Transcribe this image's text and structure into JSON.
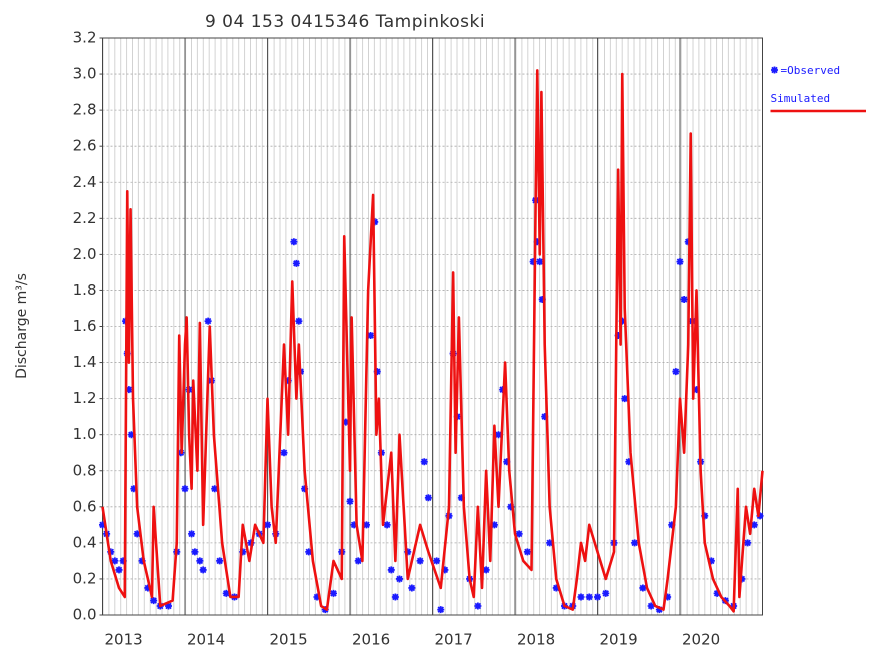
{
  "chart_data": {
    "type": "line",
    "title": "9 04 153 0415346 Tampinkoski",
    "ylabel": "Discharge m³/s",
    "xlim": [
      2013,
      2021
    ],
    "xticks": [
      2013,
      2014,
      2015,
      2016,
      2017,
      2018,
      2019,
      2020
    ],
    "ylim": [
      0,
      3.2
    ],
    "yticks": [
      {
        "value": 0,
        "label": "0.0"
      },
      {
        "value": 0.2,
        "label": "0.2"
      },
      {
        "value": 0.4,
        "label": "0.4"
      },
      {
        "value": 0.6,
        "label": "0.6"
      },
      {
        "value": 0.8,
        "label": "0.8"
      },
      {
        "value": 1,
        "label": "1.0"
      },
      {
        "value": 1.2,
        "label": "1.2"
      },
      {
        "value": 1.4,
        "label": "1.4"
      },
      {
        "value": 1.6,
        "label": "1.6"
      },
      {
        "value": 1.8,
        "label": "1.8"
      },
      {
        "value": 2,
        "label": "2.0"
      },
      {
        "value": 2.2,
        "label": "2.2"
      },
      {
        "value": 2.4,
        "label": "2.4"
      },
      {
        "value": 2.6,
        "label": "2.6"
      },
      {
        "value": 2.8,
        "label": "2.8"
      },
      {
        "value": 3,
        "label": "3.0"
      },
      {
        "value": 3.2,
        "label": "3.2"
      }
    ],
    "grid": true,
    "legend": "right",
    "series": [
      {
        "name": "=Observed",
        "color": "#1a1aff",
        "kind": "scatter",
        "x": [
          2013.0,
          2013.05,
          2013.1,
          2013.15,
          2013.2,
          2013.25,
          2013.28,
          2013.3,
          2013.32,
          2013.35,
          2013.38,
          2013.42,
          2013.48,
          2013.55,
          2013.62,
          2013.7,
          2013.8,
          2013.9,
          2013.95,
          2014.0,
          2014.05,
          2014.08,
          2014.12,
          2014.18,
          2014.22,
          2014.28,
          2014.32,
          2014.36,
          2014.42,
          2014.5,
          2014.6,
          2014.7,
          2014.8,
          2014.9,
          2015.0,
          2015.1,
          2015.2,
          2015.25,
          2015.32,
          2015.35,
          2015.38,
          2015.4,
          2015.45,
          2015.5,
          2015.6,
          2015.7,
          2015.8,
          2015.9,
          2015.95,
          2016.0,
          2016.05,
          2016.1,
          2016.2,
          2016.25,
          2016.3,
          2016.33,
          2016.38,
          2016.45,
          2016.5,
          2016.55,
          2016.6,
          2016.7,
          2016.75,
          2016.85,
          2016.9,
          2016.95,
          2017.05,
          2017.1,
          2017.15,
          2017.2,
          2017.25,
          2017.3,
          2017.35,
          2017.45,
          2017.55,
          2017.65,
          2017.75,
          2017.8,
          2017.85,
          2017.9,
          2017.95,
          2018.05,
          2018.15,
          2018.22,
          2018.25,
          2018.27,
          2018.3,
          2018.33,
          2018.36,
          2018.42,
          2018.5,
          2018.6,
          2018.7,
          2018.8,
          2018.9,
          2019.0,
          2019.1,
          2019.2,
          2019.25,
          2019.3,
          2019.33,
          2019.38,
          2019.45,
          2019.55,
          2019.65,
          2019.75,
          2019.85,
          2019.9,
          2019.95,
          2020.0,
          2020.05,
          2020.1,
          2020.15,
          2020.2,
          2020.25,
          2020.3,
          2020.38,
          2020.45,
          2020.55,
          2020.65,
          2020.75,
          2020.82,
          2020.9,
          2020.97
        ],
        "values": [
          0.5,
          0.45,
          0.35,
          0.3,
          0.25,
          0.3,
          1.63,
          1.45,
          1.25,
          1.0,
          0.7,
          0.45,
          0.3,
          0.15,
          0.08,
          0.05,
          0.05,
          0.35,
          0.9,
          0.7,
          1.25,
          0.45,
          0.35,
          0.3,
          0.25,
          1.63,
          1.3,
          0.7,
          0.3,
          0.12,
          0.1,
          0.35,
          0.4,
          0.45,
          0.5,
          0.45,
          0.9,
          1.3,
          2.07,
          1.95,
          1.63,
          1.35,
          0.7,
          0.35,
          0.1,
          0.03,
          0.12,
          0.35,
          1.07,
          0.63,
          0.5,
          0.3,
          0.5,
          1.55,
          2.18,
          1.35,
          0.9,
          0.5,
          0.25,
          0.1,
          0.2,
          0.35,
          0.15,
          0.3,
          0.85,
          0.65,
          0.3,
          0.03,
          0.25,
          0.55,
          1.45,
          1.1,
          0.65,
          0.2,
          0.05,
          0.25,
          0.5,
          1.0,
          1.25,
          0.85,
          0.6,
          0.45,
          0.35,
          1.96,
          2.3,
          2.07,
          1.96,
          1.75,
          1.1,
          0.4,
          0.15,
          0.05,
          0.05,
          0.1,
          0.1,
          0.1,
          0.12,
          0.4,
          1.55,
          1.63,
          1.2,
          0.85,
          0.4,
          0.15,
          0.05,
          0.03,
          0.1,
          0.5,
          1.35,
          1.96,
          1.75,
          2.07,
          1.63,
          1.25,
          0.85,
          0.55,
          0.3,
          0.12,
          0.08,
          0.05,
          0.2,
          0.4,
          0.5,
          0.55
        ]
      },
      {
        "name": "Simulated",
        "color": "#ee1111",
        "kind": "line",
        "x": [
          2013.0,
          2013.1,
          2013.2,
          2013.27,
          2013.3,
          2013.32,
          2013.34,
          2013.37,
          2013.42,
          2013.5,
          2013.6,
          2013.62,
          2013.7,
          2013.85,
          2013.9,
          2013.93,
          2013.96,
          2014.0,
          2014.02,
          2014.05,
          2014.08,
          2014.1,
          2014.15,
          2014.18,
          2014.22,
          2014.3,
          2014.35,
          2014.45,
          2014.55,
          2014.65,
          2014.7,
          2014.78,
          2014.85,
          2014.95,
          2015.0,
          2015.05,
          2015.1,
          2015.2,
          2015.25,
          2015.3,
          2015.35,
          2015.38,
          2015.45,
          2015.55,
          2015.65,
          2015.72,
          2015.8,
          2015.9,
          2015.93,
          2016.0,
          2016.02,
          2016.08,
          2016.15,
          2016.22,
          2016.28,
          2016.32,
          2016.35,
          2016.4,
          2016.5,
          2016.55,
          2016.6,
          2016.7,
          2016.85,
          2016.95,
          2017.1,
          2017.2,
          2017.25,
          2017.28,
          2017.32,
          2017.38,
          2017.45,
          2017.5,
          2017.55,
          2017.6,
          2017.65,
          2017.7,
          2017.75,
          2017.8,
          2017.88,
          2017.93,
          2018.0,
          2018.1,
          2018.2,
          2018.25,
          2018.27,
          2018.3,
          2018.32,
          2018.36,
          2018.42,
          2018.5,
          2018.6,
          2018.7,
          2018.75,
          2018.8,
          2018.85,
          2018.9,
          2019.0,
          2019.1,
          2019.2,
          2019.25,
          2019.28,
          2019.3,
          2019.33,
          2019.4,
          2019.5,
          2019.6,
          2019.7,
          2019.8,
          2019.85,
          2019.95,
          2020.0,
          2020.05,
          2020.1,
          2020.13,
          2020.16,
          2020.2,
          2020.25,
          2020.3,
          2020.4,
          2020.5,
          2020.6,
          2020.65,
          2020.7,
          2020.72,
          2020.8,
          2020.85,
          2020.9,
          2020.95,
          2021.0
        ],
        "values": [
          0.6,
          0.3,
          0.15,
          0.1,
          2.35,
          1.4,
          2.25,
          1.2,
          0.6,
          0.3,
          0.1,
          0.6,
          0.05,
          0.08,
          0.4,
          1.55,
          0.9,
          1.5,
          1.65,
          1.0,
          0.7,
          1.3,
          0.8,
          1.62,
          0.5,
          1.6,
          1.0,
          0.4,
          0.1,
          0.1,
          0.5,
          0.3,
          0.5,
          0.4,
          1.2,
          0.6,
          0.4,
          1.5,
          1.0,
          1.85,
          1.2,
          1.5,
          0.8,
          0.3,
          0.05,
          0.03,
          0.3,
          0.2,
          2.1,
          0.8,
          1.65,
          0.5,
          0.3,
          1.8,
          2.33,
          1.0,
          1.2,
          0.5,
          0.9,
          0.3,
          1.0,
          0.2,
          0.5,
          0.35,
          0.15,
          0.6,
          1.9,
          0.9,
          1.65,
          0.6,
          0.2,
          0.1,
          0.6,
          0.15,
          0.8,
          0.3,
          1.05,
          0.6,
          1.4,
          0.8,
          0.45,
          0.3,
          0.25,
          2.3,
          3.02,
          2.0,
          2.9,
          1.5,
          0.6,
          0.2,
          0.05,
          0.03,
          0.2,
          0.4,
          0.3,
          0.5,
          0.35,
          0.2,
          0.35,
          2.47,
          1.5,
          3.0,
          1.7,
          0.9,
          0.4,
          0.15,
          0.05,
          0.03,
          0.2,
          0.6,
          1.2,
          0.9,
          1.5,
          2.67,
          1.2,
          1.8,
          0.8,
          0.4,
          0.2,
          0.1,
          0.05,
          0.02,
          0.7,
          0.1,
          0.6,
          0.45,
          0.7,
          0.55,
          0.8
        ]
      }
    ]
  }
}
